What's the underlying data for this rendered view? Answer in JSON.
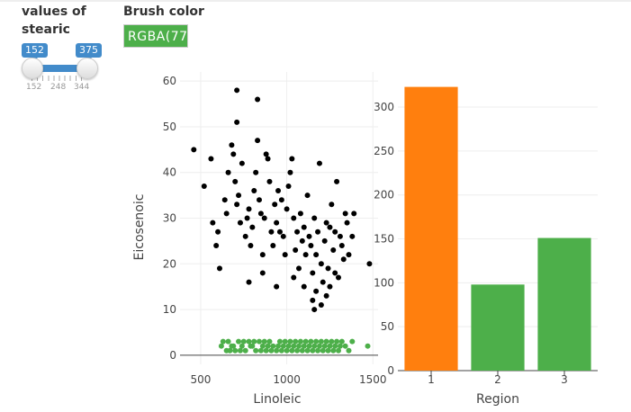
{
  "controls": {
    "slider": {
      "label": "values of stearic",
      "value_low": "152",
      "value_high": "375",
      "tick_labels": [
        "152",
        "248",
        "344"
      ],
      "color": "#428bca"
    },
    "brush": {
      "label": "Brush color",
      "value": "RGBA(77,",
      "color": "#4daf4a"
    }
  },
  "chart_data": [
    {
      "type": "scatter",
      "xlabel": "Linoleic",
      "ylabel": "Eicosenoic",
      "xlim": [
        380,
        1530
      ],
      "ylim": [
        -2,
        62
      ],
      "xticks": [
        500,
        1000,
        1500
      ],
      "yticks": [
        0,
        10,
        20,
        30,
        40,
        50,
        60
      ],
      "grid": true,
      "series": [
        {
          "color": "#000000",
          "points": [
            [
              460,
              45
            ],
            [
              560,
              43
            ],
            [
              520,
              37
            ],
            [
              570,
              29
            ],
            [
              590,
              24
            ],
            [
              600,
              27
            ],
            [
              610,
              19
            ],
            [
              640,
              34
            ],
            [
              650,
              31
            ],
            [
              660,
              40
            ],
            [
              680,
              46
            ],
            [
              690,
              44
            ],
            [
              700,
              38
            ],
            [
              710,
              33
            ],
            [
              720,
              35
            ],
            [
              730,
              29
            ],
            [
              740,
              42
            ],
            [
              760,
              26
            ],
            [
              770,
              30
            ],
            [
              780,
              32
            ],
            [
              790,
              24
            ],
            [
              800,
              28
            ],
            [
              810,
              36
            ],
            [
              820,
              40
            ],
            [
              830,
              47
            ],
            [
              840,
              34
            ],
            [
              850,
              31
            ],
            [
              860,
              22
            ],
            [
              870,
              30
            ],
            [
              880,
              44
            ],
            [
              890,
              43
            ],
            [
              900,
              38
            ],
            [
              910,
              27
            ],
            [
              920,
              24
            ],
            [
              930,
              33
            ],
            [
              940,
              29
            ],
            [
              950,
              36
            ],
            [
              960,
              27
            ],
            [
              970,
              34
            ],
            [
              980,
              26
            ],
            [
              990,
              22
            ],
            [
              1000,
              32
            ],
            [
              1010,
              37
            ],
            [
              1020,
              40
            ],
            [
              1030,
              43
            ],
            [
              1040,
              30
            ],
            [
              1050,
              23
            ],
            [
              1060,
              27
            ],
            [
              1070,
              19
            ],
            [
              1080,
              31
            ],
            [
              1090,
              25
            ],
            [
              1100,
              28
            ],
            [
              1110,
              22
            ],
            [
              1120,
              35
            ],
            [
              1130,
              26
            ],
            [
              1140,
              24
            ],
            [
              1150,
              18
            ],
            [
              1160,
              30
            ],
            [
              1170,
              22
            ],
            [
              1180,
              27
            ],
            [
              1190,
              42
            ],
            [
              1200,
              20
            ],
            [
              1210,
              16
            ],
            [
              1220,
              25
            ],
            [
              1230,
              29
            ],
            [
              1240,
              19
            ],
            [
              1250,
              28
            ],
            [
              1260,
              33
            ],
            [
              1270,
              23
            ],
            [
              1280,
              27
            ],
            [
              1290,
              38
            ],
            [
              1300,
              17
            ],
            [
              1310,
              26
            ],
            [
              1320,
              24
            ],
            [
              1330,
              21
            ],
            [
              1340,
              31
            ],
            [
              1350,
              29
            ],
            [
              1360,
              22
            ],
            [
              1380,
              26
            ],
            [
              1390,
              31
            ],
            [
              1480,
              20
            ],
            [
              710,
              58
            ],
            [
              830,
              56
            ],
            [
              710,
              51
            ],
            [
              1150,
              12
            ],
            [
              1160,
              10
            ],
            [
              1170,
              14
            ],
            [
              1200,
              11
            ],
            [
              1230,
              13
            ],
            [
              1100,
              15
            ],
            [
              780,
              16
            ],
            [
              940,
              15
            ],
            [
              860,
              18
            ],
            [
              1040,
              17
            ],
            [
              1250,
              15
            ],
            [
              1280,
              18
            ]
          ]
        },
        {
          "color": "#4daf4a",
          "points": [
            [
              620,
              2
            ],
            [
              650,
              1
            ],
            [
              660,
              3
            ],
            [
              680,
              2
            ],
            [
              700,
              1
            ],
            [
              720,
              3
            ],
            [
              740,
              2
            ],
            [
              760,
              1
            ],
            [
              780,
              3
            ],
            [
              800,
              2
            ],
            [
              820,
              1
            ],
            [
              840,
              3
            ],
            [
              860,
              2
            ],
            [
              880,
              1
            ],
            [
              900,
              3
            ],
            [
              920,
              2
            ],
            [
              940,
              1
            ],
            [
              960,
              3
            ],
            [
              980,
              2
            ],
            [
              1000,
              1
            ],
            [
              1020,
              3
            ],
            [
              1040,
              2
            ],
            [
              1060,
              1
            ],
            [
              1080,
              3
            ],
            [
              1100,
              2
            ],
            [
              1120,
              1
            ],
            [
              1140,
              3
            ],
            [
              1160,
              2
            ],
            [
              1180,
              1
            ],
            [
              1200,
              3
            ],
            [
              1220,
              2
            ],
            [
              1240,
              1
            ],
            [
              1260,
              3
            ],
            [
              1280,
              2
            ],
            [
              1300,
              1
            ],
            [
              1320,
              3
            ],
            [
              1340,
              2
            ],
            [
              1360,
              1
            ],
            [
              1380,
              3
            ],
            [
              1470,
              2
            ],
            [
              630,
              3
            ],
            [
              670,
              1
            ],
            [
              690,
              2
            ],
            [
              730,
              1
            ],
            [
              750,
              3
            ],
            [
              790,
              2
            ],
            [
              810,
              3
            ],
            [
              850,
              1
            ],
            [
              870,
              3
            ],
            [
              890,
              2
            ],
            [
              910,
              1
            ],
            [
              950,
              2
            ],
            [
              970,
              1
            ],
            [
              990,
              3
            ],
            [
              1010,
              2
            ],
            [
              1030,
              1
            ],
            [
              1050,
              3
            ],
            [
              1070,
              2
            ],
            [
              1090,
              1
            ],
            [
              1110,
              3
            ],
            [
              1130,
              2
            ],
            [
              1150,
              1
            ],
            [
              1170,
              3
            ],
            [
              1190,
              2
            ],
            [
              1210,
              1
            ],
            [
              1230,
              3
            ],
            [
              1250,
              2
            ],
            [
              1270,
              1
            ],
            [
              1290,
              3
            ],
            [
              1310,
              2
            ]
          ]
        }
      ]
    },
    {
      "type": "bar",
      "xlabel": "Region",
      "ylabel": "",
      "categories": [
        "1",
        "2",
        "3"
      ],
      "values": [
        323,
        98,
        151
      ],
      "colors": [
        "#ff7f0e",
        "#4daf4a",
        "#4daf4a"
      ],
      "ylim": [
        0,
        340
      ],
      "yticks": [
        0,
        50,
        100,
        150,
        200,
        250,
        300
      ],
      "grid": true
    }
  ]
}
